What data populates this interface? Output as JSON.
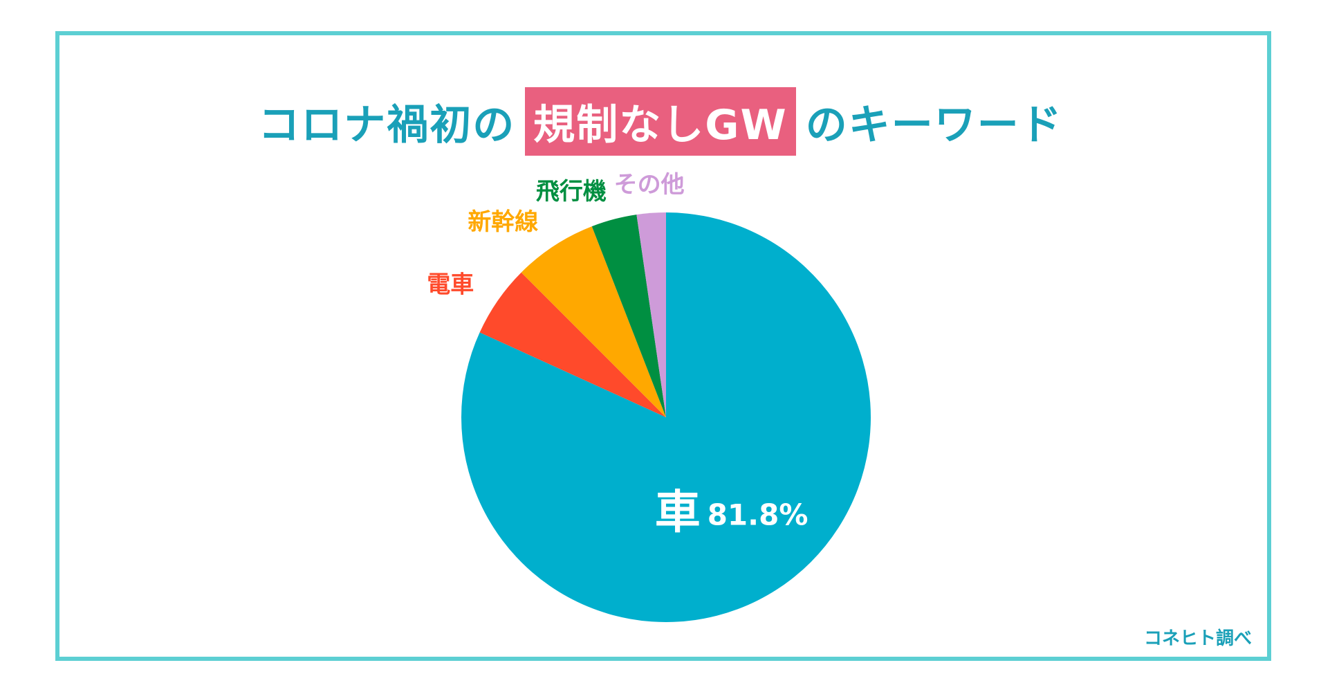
{
  "header": {
    "title_pre": "コロナ禍初の",
    "title_highlight": "規制なしGW",
    "title_post": "のキーワード"
  },
  "chart_data": {
    "type": "pie",
    "slices": [
      {
        "label": "車",
        "value": 81.8,
        "value_label": "81.8%",
        "color": "#00afcd"
      },
      {
        "label": "電車",
        "value": 5.7,
        "color": "#ff4a2b"
      },
      {
        "label": "新幹線",
        "value": 6.6,
        "color": "#ffa800"
      },
      {
        "label": "飛行機",
        "value": 3.6,
        "color": "#008f41"
      },
      {
        "label": "その他",
        "value": 2.3,
        "color": "#ce9bd9"
      }
    ]
  },
  "footer": {
    "source": "コネヒト調べ"
  }
}
